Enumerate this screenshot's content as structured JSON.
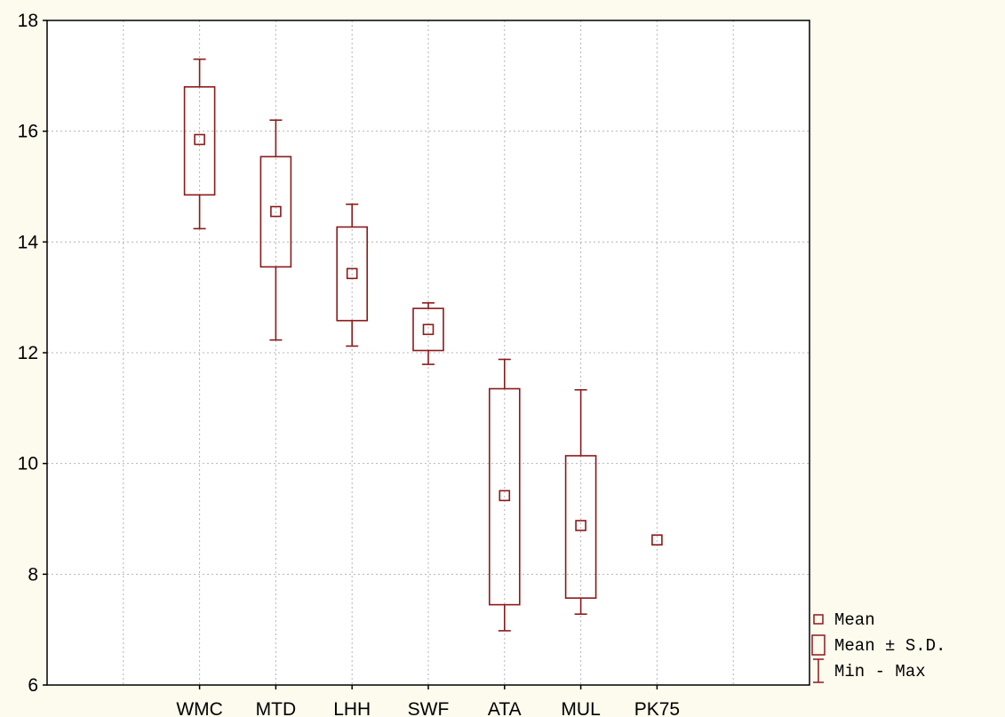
{
  "chart_data": {
    "type": "boxplot",
    "title": "",
    "xlabel": "",
    "ylabel": "",
    "ylim": [
      6,
      18
    ],
    "yticks": [
      "6",
      "8",
      "10",
      "12",
      "14",
      "16",
      "18"
    ],
    "grid": true,
    "legend_position": "bottom-right",
    "categories": [
      "WMC",
      "MTD",
      "LHH",
      "SWF",
      "ATA",
      "MUL",
      "PK75"
    ],
    "mean": [
      15.85,
      14.55,
      13.43,
      12.42,
      9.42,
      8.88,
      8.62
    ],
    "sd_low": [
      14.85,
      13.55,
      12.58,
      12.04,
      7.45,
      7.57,
      null
    ],
    "sd_high": [
      16.8,
      15.54,
      14.27,
      12.8,
      11.35,
      10.14,
      null
    ],
    "min": [
      14.24,
      12.23,
      12.12,
      11.79,
      6.98,
      7.28,
      null
    ],
    "max": [
      17.3,
      16.2,
      14.68,
      12.9,
      11.88,
      11.33,
      null
    ],
    "color": "#8b1a1a",
    "legend": [
      {
        "symbol": "mean",
        "label": "Mean"
      },
      {
        "symbol": "box",
        "label": "Mean ± S.D."
      },
      {
        "symbol": "whisker",
        "label": "Min - Max"
      }
    ]
  }
}
